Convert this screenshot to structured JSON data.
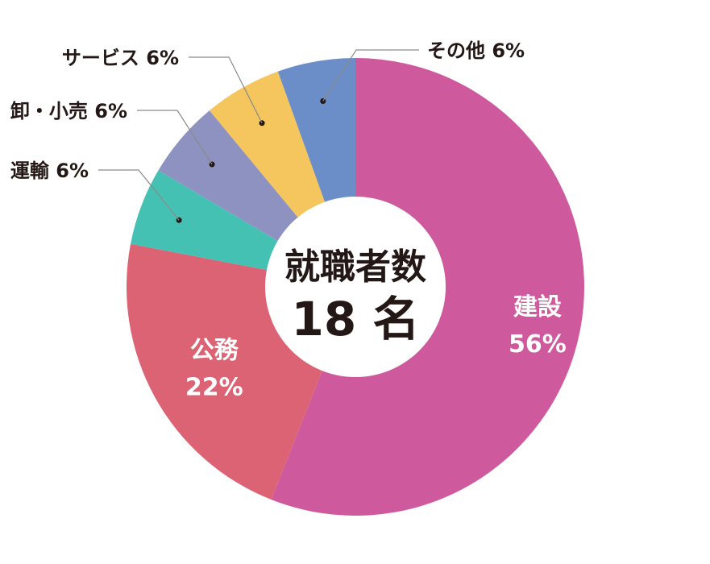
{
  "chart_data": {
    "type": "pie",
    "donut": true,
    "center_title": "就職者数",
    "center_value": "18 名",
    "slices": [
      {
        "label": "建設",
        "pct_label": "56%",
        "value": 56,
        "color": "#CE599D",
        "label_style": "inside"
      },
      {
        "label": "公務",
        "pct_label": "22%",
        "value": 22,
        "color": "#DB6373",
        "label_style": "inside"
      },
      {
        "label": "運輸",
        "pct_label": "6%",
        "value": 5.5,
        "color": "#44C1B2",
        "label_style": "outside"
      },
      {
        "label": "卸・小売",
        "pct_label": "6%",
        "value": 5.5,
        "color": "#8E92C1",
        "label_style": "outside"
      },
      {
        "label": "サービス",
        "pct_label": "6%",
        "value": 5.5,
        "color": "#F4C65D",
        "label_style": "outside"
      },
      {
        "label": "その他",
        "pct_label": "6%",
        "value": 5.5,
        "color": "#6B8EC8",
        "label_style": "outside"
      }
    ]
  }
}
